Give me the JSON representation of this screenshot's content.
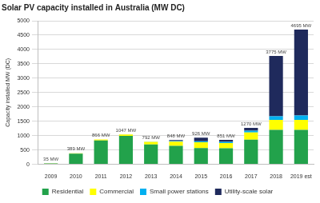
{
  "chart_data": {
    "type": "bar",
    "title": "Solar PV capacity installed in Australia (MW DC)",
    "y_label": "Capacity installed MW (DC)",
    "categories": [
      "2009",
      "2010",
      "2011",
      "2012",
      "2013",
      "2014",
      "2015",
      "2016",
      "2017",
      "2018",
      "2019 est"
    ],
    "series": [
      {
        "name": "Residential",
        "color": "#22a24b",
        "values": [
          33,
          375,
          830,
          990,
          690,
          640,
          570,
          560,
          860,
          1200,
          1200
        ]
      },
      {
        "name": "Commercial",
        "color": "#ffff00",
        "values": [
          2,
          14,
          36,
          50,
          90,
          150,
          200,
          180,
          250,
          350,
          350
        ]
      },
      {
        "name": "Small power stations",
        "color": "#00b0f0",
        "values": [
          0,
          0,
          0,
          7,
          12,
          20,
          30,
          40,
          60,
          120,
          150
        ]
      },
      {
        "name": "Utility-scale solar",
        "color": "#1f2a5c",
        "values": [
          0,
          0,
          0,
          0,
          0,
          38,
          126,
          71,
          100,
          2105,
          2995
        ]
      }
    ],
    "totals": [
      35,
      389,
      866,
      1047,
      792,
      848,
      926,
      851,
      1270,
      3775,
      4695
    ],
    "total_labels": [
      "35 MW",
      "389 MW",
      "866 MW",
      "1047 MW",
      "792 MW",
      "848 MW",
      "926 MW",
      "851 MW",
      "1270 MW",
      "3775 MW",
      "4695 MW"
    ],
    "stacked": true,
    "ylim": [
      0,
      5000
    ],
    "yticks": [
      0,
      500,
      1000,
      1500,
      2000,
      2500,
      3000,
      3500,
      4000,
      4500,
      5000
    ],
    "grid": true,
    "legend": "bottom"
  }
}
